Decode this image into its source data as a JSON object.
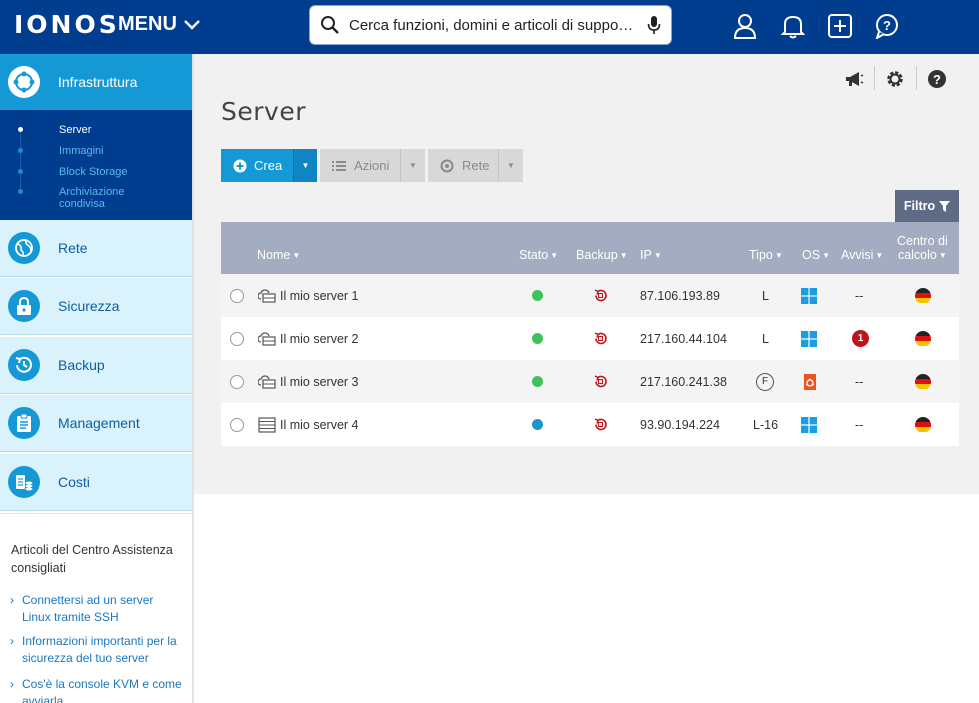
{
  "header": {
    "logo": "IONOS",
    "menu_label": "MENU",
    "search_placeholder": "Cerca funzioni, domini e articoli di suppo…"
  },
  "sidebar": {
    "active_section": "Infrastruttura",
    "sub_items": [
      "Server",
      "Immagini",
      "Block Storage",
      "Archiviazione condivisa"
    ],
    "items": [
      "Rete",
      "Sicurezza",
      "Backup",
      "Management",
      "Costi"
    ]
  },
  "help": {
    "title": "Articoli del Centro Assistenza consigliati",
    "links": [
      "Connettersi ad un server Linux tramite SSH",
      "Informazioni importanti per la sicurezza del tuo server",
      "Cos'è la console KVM e come avviarla"
    ]
  },
  "main": {
    "title": "Server",
    "toolbar": {
      "create": "Crea",
      "actions": "Azioni",
      "network": "Rete"
    },
    "filter": "Filtro",
    "columns": {
      "name": "Nome",
      "status": "Stato",
      "backup": "Backup",
      "ip": "IP",
      "type": "Tipo",
      "os": "OS",
      "alerts": "Avvisi",
      "datacenter_line1": "Centro di",
      "datacenter_line2": "calcolo"
    },
    "rows": [
      {
        "name": "Il mio server 1",
        "status_color": "#3ec25a",
        "ip": "87.106.193.89",
        "type": "L",
        "os": "windows",
        "alerts": "--",
        "alert_count": ""
      },
      {
        "name": "Il mio server 2",
        "status_color": "#3ec25a",
        "ip": "217.160.44.104",
        "type": "L",
        "os": "windows",
        "alerts": "",
        "alert_count": "1"
      },
      {
        "name": "Il mio server 3",
        "status_color": "#3ec25a",
        "ip": "217.160.241.38",
        "type": "F",
        "os": "ubuntu",
        "alerts": "--",
        "alert_count": ""
      },
      {
        "name": "Il mio server 4",
        "status_color": "#1a95d0",
        "ip": "93.90.194.224",
        "type": "L-16",
        "os": "windows",
        "alerts": "--",
        "alert_count": ""
      }
    ]
  },
  "colors": {
    "header_bg": "#003d8f",
    "accent": "#1599d6",
    "table_header": "#a3acc0",
    "alert_red": "#c0131b"
  }
}
